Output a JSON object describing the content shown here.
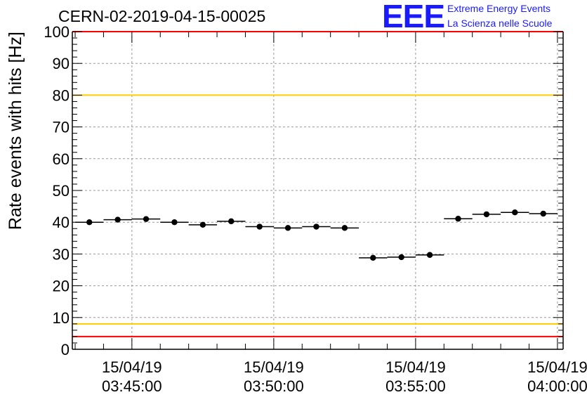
{
  "header": {
    "title": "CERN-02-2019-04-15-00025",
    "logo_mark": "EEE",
    "logo_line1": "Extreme Energy Events",
    "logo_line2": "La Scienza nelle Scuole"
  },
  "colors": {
    "logo": "#1a1aff",
    "red_threshold": "#ff0000",
    "yellow_threshold": "#ffcc00",
    "grid": "#999999",
    "points": "#000000"
  },
  "chart_data": {
    "type": "scatter",
    "ylabel": "Rate events with hits [Hz]",
    "xlabel": "",
    "ylim": [
      0,
      100
    ],
    "xlim_minutes": [
      42.9,
      60.2
    ],
    "y_ticks": [
      0,
      10,
      20,
      30,
      40,
      50,
      60,
      70,
      80,
      90,
      100
    ],
    "x_ticks": [
      {
        "minute": 45,
        "date": "15/04/19",
        "time": "03:45:00"
      },
      {
        "minute": 50,
        "date": "15/04/19",
        "time": "03:50:00"
      },
      {
        "minute": 55,
        "date": "15/04/19",
        "time": "03:55:00"
      },
      {
        "minute": 60,
        "date": "15/04/19",
        "time": "04:00:00"
      }
    ],
    "grid": true,
    "bin_width_minutes": 1,
    "series": [
      {
        "x_minutes": [
          43.5,
          44.5,
          45.5,
          46.5,
          47.5,
          48.5,
          49.5,
          50.5,
          51.5,
          52.5,
          53.5,
          54.5,
          55.5,
          56.5,
          57.5,
          58.5,
          59.5
        ],
        "values": [
          40.0,
          40.8,
          41.0,
          40.0,
          39.2,
          40.3,
          38.6,
          38.2,
          38.6,
          38.2,
          28.8,
          29.0,
          29.7,
          41.1,
          42.5,
          43.1,
          42.7
        ]
      }
    ],
    "threshold_lines": [
      {
        "y": 100,
        "color": "red"
      },
      {
        "y": 80,
        "color": "yellow"
      },
      {
        "y": 8,
        "color": "yellow"
      },
      {
        "y": 4,
        "color": "red"
      }
    ]
  }
}
